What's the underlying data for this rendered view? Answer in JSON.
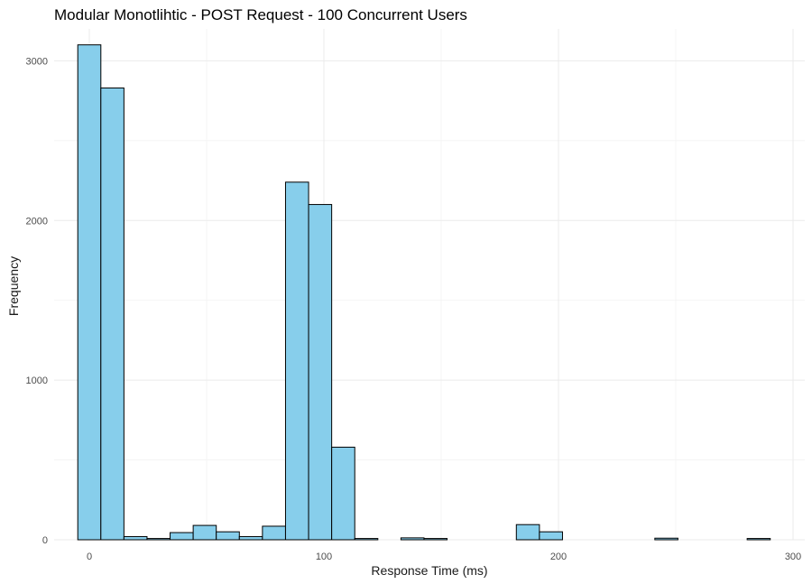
{
  "chart_data": {
    "type": "bar",
    "title": "Modular Monotlihtic - POST Request - 100 Concurrent Users",
    "xlabel": "Response Time (ms)",
    "ylabel": "Frequency",
    "xlim": [
      -15,
      305
    ],
    "ylim": [
      0,
      3200
    ],
    "x_ticks": [
      0,
      100,
      200,
      300
    ],
    "y_ticks": [
      0,
      1000,
      2000,
      3000
    ],
    "bin_width": 9.84,
    "bins": [
      {
        "x0": -4.92,
        "x1": 4.92,
        "count": 3100
      },
      {
        "x0": 4.92,
        "x1": 14.76,
        "count": 2830
      },
      {
        "x0": 14.76,
        "x1": 24.6,
        "count": 20
      },
      {
        "x0": 24.6,
        "x1": 34.44,
        "count": 8
      },
      {
        "x0": 34.44,
        "x1": 44.28,
        "count": 45
      },
      {
        "x0": 44.28,
        "x1": 54.12,
        "count": 90
      },
      {
        "x0": 54.12,
        "x1": 63.96,
        "count": 50
      },
      {
        "x0": 63.96,
        "x1": 73.8,
        "count": 20
      },
      {
        "x0": 73.8,
        "x1": 83.64,
        "count": 85
      },
      {
        "x0": 83.64,
        "x1": 93.48,
        "count": 2240
      },
      {
        "x0": 93.48,
        "x1": 103.32,
        "count": 2100
      },
      {
        "x0": 103.32,
        "x1": 113.16,
        "count": 580
      },
      {
        "x0": 113.16,
        "x1": 123.0,
        "count": 8
      },
      {
        "x0": 123.0,
        "x1": 132.84,
        "count": 0
      },
      {
        "x0": 132.84,
        "x1": 142.68,
        "count": 12
      },
      {
        "x0": 142.68,
        "x1": 152.52,
        "count": 8
      },
      {
        "x0": 152.52,
        "x1": 162.36,
        "count": 0
      },
      {
        "x0": 162.36,
        "x1": 172.2,
        "count": 0
      },
      {
        "x0": 172.2,
        "x1": 182.04,
        "count": 0
      },
      {
        "x0": 182.04,
        "x1": 191.88,
        "count": 95
      },
      {
        "x0": 191.88,
        "x1": 201.72,
        "count": 50
      },
      {
        "x0": 201.72,
        "x1": 211.56,
        "count": 0
      },
      {
        "x0": 211.56,
        "x1": 221.4,
        "count": 0
      },
      {
        "x0": 221.4,
        "x1": 231.24,
        "count": 0
      },
      {
        "x0": 231.24,
        "x1": 241.08,
        "count": 0
      },
      {
        "x0": 241.08,
        "x1": 250.92,
        "count": 10
      },
      {
        "x0": 250.92,
        "x1": 260.76,
        "count": 0
      },
      {
        "x0": 260.76,
        "x1": 270.6,
        "count": 0
      },
      {
        "x0": 270.6,
        "x1": 280.44,
        "count": 0
      },
      {
        "x0": 280.44,
        "x1": 290.28,
        "count": 8
      },
      {
        "x0": 290.28,
        "x1": 300.12,
        "count": 0
      }
    ],
    "grid": true,
    "legend": "none",
    "colors": {
      "bar_fill": "#87ceeb",
      "bar_outline": "#000000",
      "grid": "#ebebeb"
    }
  }
}
